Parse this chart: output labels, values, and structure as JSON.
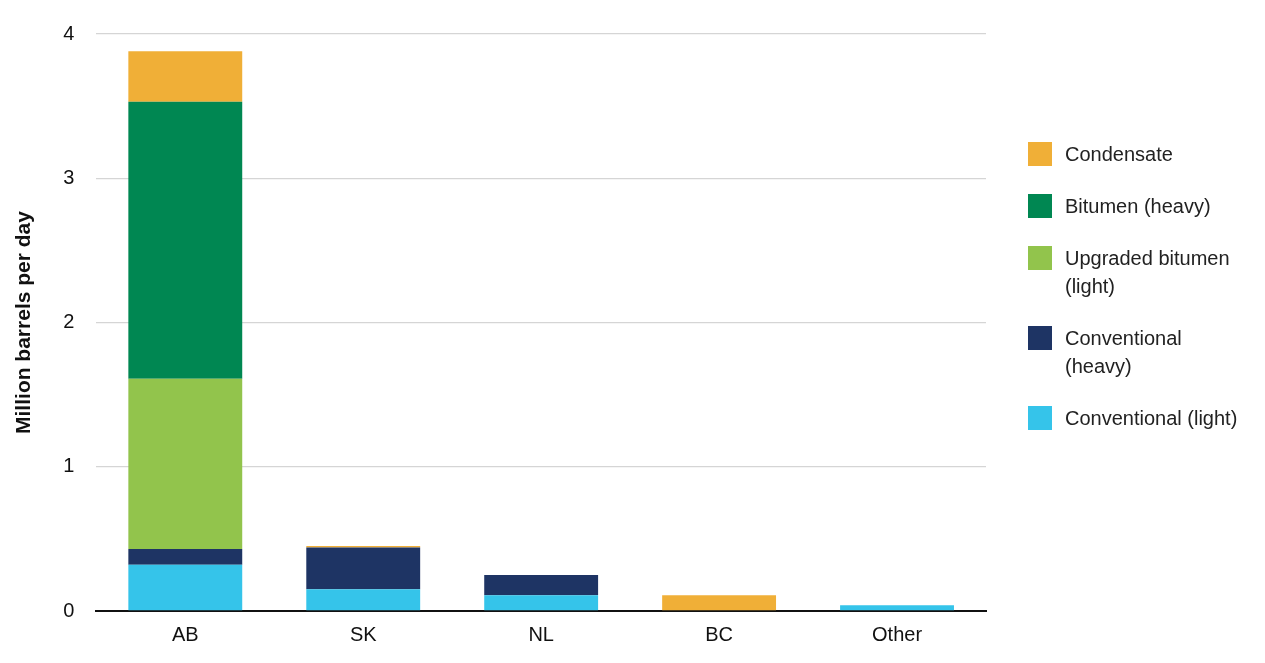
{
  "chart_data": {
    "type": "bar",
    "stacked": true,
    "ylabel": "Million barrels per day",
    "categories": [
      "AB",
      "SK",
      "NL",
      "BC",
      "Other"
    ],
    "series": [
      {
        "name": "Conventional (light)",
        "color": "#35c4ea",
        "values": [
          0.32,
          0.15,
          0.11,
          null,
          0.04
        ]
      },
      {
        "name": "Conventional (heavy)",
        "color": "#1e3464",
        "values": [
          0.11,
          0.29,
          0.14,
          null,
          null
        ]
      },
      {
        "name": "Upgraded bitumen (light)",
        "color": "#92c44c",
        "values": [
          1.18,
          null,
          null,
          null,
          null
        ]
      },
      {
        "name": "Bitumen (heavy)",
        "color": "#008752",
        "values": [
          1.92,
          null,
          null,
          null,
          null
        ]
      },
      {
        "name": "Condensate",
        "color": "#f0af37",
        "values": [
          0.35,
          0.01,
          null,
          0.11,
          null
        ]
      }
    ],
    "ylim": [
      0,
      4
    ],
    "yticks": [
      0,
      1,
      2,
      3,
      4
    ],
    "grid": "y",
    "legend": "right"
  }
}
